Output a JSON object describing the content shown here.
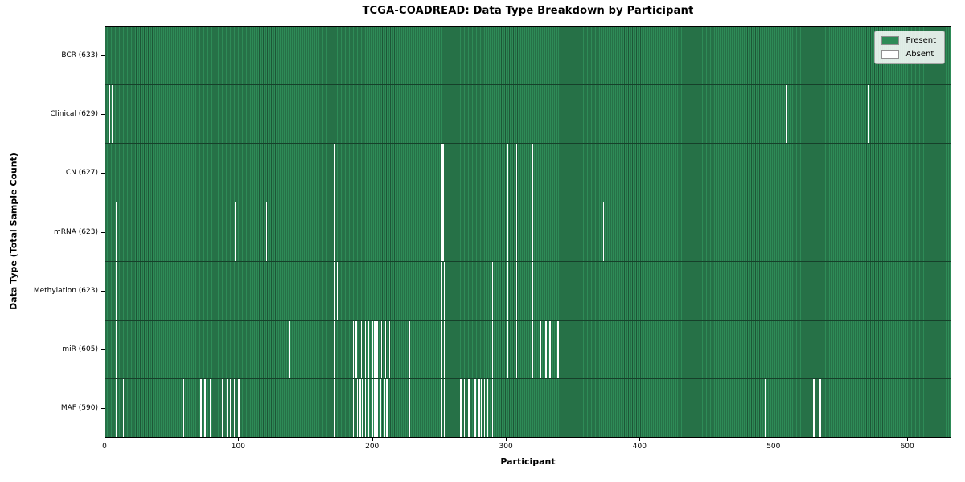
{
  "chart_data": {
    "type": "heatmap",
    "title": "TCGA-COADREAD: Data Type Breakdown by Participant",
    "xlabel": "Participant",
    "ylabel": "Data Type (Total Sample Count)",
    "x_tick_labels": [
      "0",
      "100",
      "200",
      "300",
      "400",
      "500",
      "600"
    ],
    "x_tick_values": [
      0,
      100,
      200,
      300,
      400,
      500,
      600
    ],
    "xlim": [
      0,
      633
    ],
    "n_participants": 633,
    "grid": false,
    "legend_position": "upper right",
    "legend": [
      {
        "label": "Present",
        "color": "#2e8b57"
      },
      {
        "label": "Absent",
        "color": "#ffffff"
      }
    ],
    "colors": {
      "present": "#2e8b57",
      "present_edge": "#1d5737",
      "absent": "#ffffff",
      "axis": "#000000",
      "legend_bg": "rgba(255,255,255,0.85)",
      "legend_border": "#a6a6a6"
    },
    "rows": [
      {
        "data_type": "BCR",
        "label": "BCR (633)",
        "present_count": 633,
        "absent_count": 0,
        "absent_participants": []
      },
      {
        "data_type": "Clinical",
        "label": "Clinical (629)",
        "present_count": 629,
        "absent_count": 4,
        "absent_participants": [
          3,
          5,
          509,
          570
        ]
      },
      {
        "data_type": "CN",
        "label": "CN (627)",
        "present_count": 627,
        "absent_count": 6,
        "absent_participants": [
          171,
          251,
          252,
          300,
          307,
          319
        ]
      },
      {
        "data_type": "mRNA",
        "label": "mRNA (623)",
        "present_count": 623,
        "absent_count": 10,
        "absent_participants": [
          8,
          97,
          120,
          171,
          251,
          252,
          300,
          307,
          319,
          372
        ]
      },
      {
        "data_type": "Methylation",
        "label": "Methylation (623)",
        "present_count": 623,
        "absent_count": 10,
        "absent_participants": [
          8,
          110,
          171,
          173,
          251,
          253,
          289,
          300,
          307,
          319
        ]
      },
      {
        "data_type": "miR",
        "label": "miR (605)",
        "present_count": 605,
        "absent_count": 28,
        "absent_participants": [
          8,
          110,
          137,
          171,
          185,
          187,
          191,
          194,
          196,
          199,
          201,
          202,
          203,
          206,
          209,
          212,
          227,
          251,
          253,
          289,
          300,
          307,
          319,
          325,
          329,
          332,
          338,
          343
        ]
      },
      {
        "data_type": "MAF",
        "label": "MAF (590)",
        "present_count": 590,
        "absent_count": 43,
        "absent_participants": [
          8,
          13,
          58,
          71,
          74,
          78,
          87,
          91,
          93,
          96,
          99,
          100,
          171,
          185,
          188,
          190,
          192,
          194,
          196,
          199,
          201,
          202,
          203,
          205,
          208,
          210,
          227,
          251,
          253,
          265,
          266,
          268,
          271,
          272,
          276,
          279,
          281,
          283,
          285,
          289,
          493,
          529,
          534
        ]
      }
    ]
  }
}
